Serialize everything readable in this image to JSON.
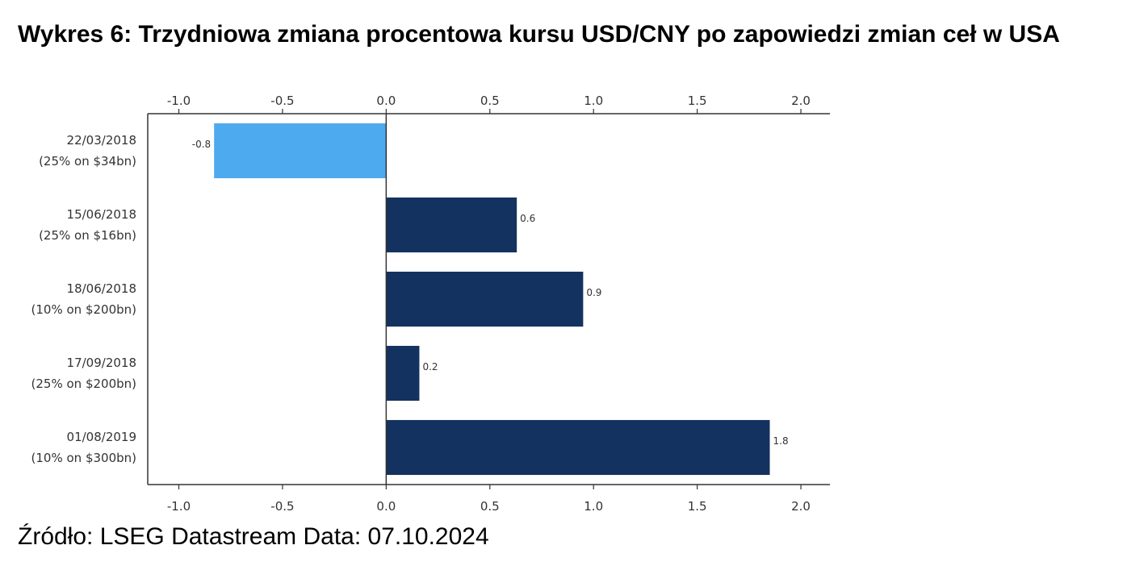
{
  "title": "Wykres 6: Trzydniowa zmiana procentowa kursu USD/CNY po zapowiedzi zmian ceł w USA",
  "source": "Źródło: LSEG Datastream Data: 07.10.2024",
  "colors": {
    "negative": "#4DAAEE",
    "positive": "#14325F",
    "axis": "#333333"
  },
  "chart_data": {
    "type": "bar",
    "orientation": "horizontal",
    "categories": [
      [
        "22/03/2018",
        "(25% on $34bn)"
      ],
      [
        "15/06/2018",
        "(25% on $16bn)"
      ],
      [
        "18/06/2018",
        "(10% on $200bn)"
      ],
      [
        "17/09/2018",
        "(25% on $200bn)"
      ],
      [
        "01/08/2019",
        "(10% on $300bn)"
      ]
    ],
    "values": [
      -0.83,
      0.63,
      0.95,
      0.16,
      1.85
    ],
    "data_labels": [
      "-0.8",
      "0.6",
      "0.9",
      "0.2",
      "1.8"
    ],
    "xlim": [
      -1.15,
      2.14
    ],
    "x_ticks": [
      -1.0,
      -0.5,
      0.0,
      0.5,
      1.0,
      1.5,
      2.0
    ],
    "x_tick_labels": [
      "-1.0",
      "-0.5",
      "0.0",
      "0.5",
      "1.0",
      "1.5",
      "2.0"
    ],
    "x_axis_positions": [
      "top",
      "bottom"
    ],
    "grid": false,
    "legend": false
  }
}
